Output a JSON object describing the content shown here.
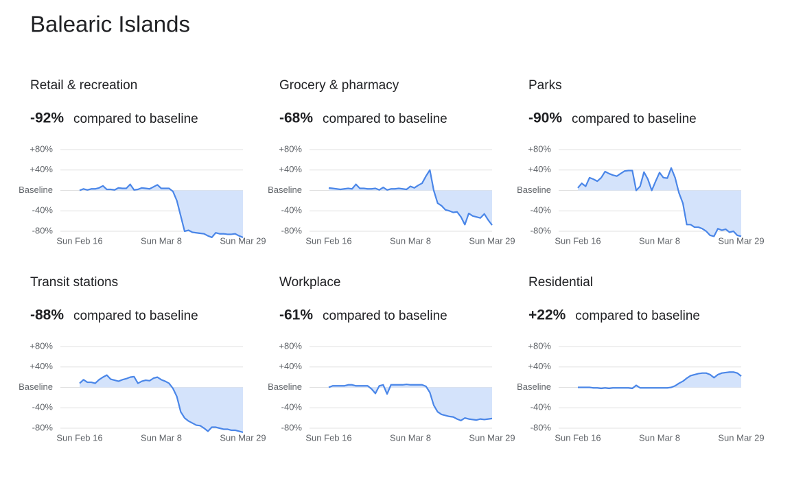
{
  "title": "Balearic Islands",
  "chart_data": [
    {
      "type": "line",
      "title": "Retail & recreation",
      "headline": "-92%",
      "headline_text": "compared to baseline",
      "categories": [
        "Sun Feb 16",
        null,
        null,
        null,
        null,
        null,
        null,
        null,
        null,
        null,
        null,
        null,
        null,
        null,
        null,
        null,
        null,
        null,
        null,
        null,
        null,
        "Sun Mar 8",
        null,
        null,
        null,
        null,
        null,
        null,
        null,
        null,
        null,
        null,
        null,
        null,
        null,
        null,
        null,
        null,
        null,
        null,
        null,
        null,
        "Sun Mar 29"
      ],
      "values": [
        0,
        3,
        1,
        3,
        3,
        5,
        9,
        2,
        2,
        1,
        5,
        4,
        4,
        12,
        1,
        2,
        5,
        4,
        3,
        7,
        11,
        4,
        4,
        4,
        -2,
        -20,
        -50,
        -80,
        -78,
        -82,
        -83,
        -84,
        -85,
        -89,
        -92,
        -83,
        -85,
        -85,
        -86,
        -86,
        -85,
        -89,
        -92
      ],
      "ylim": [
        -80,
        80
      ],
      "yticks": [
        {
          "value": 80,
          "label": "+80%"
        },
        {
          "value": 40,
          "label": "+40%"
        },
        {
          "value": 0,
          "label": "Baseline"
        },
        {
          "value": -40,
          "label": "-40%"
        },
        {
          "value": -80,
          "label": "-80%"
        }
      ],
      "color": "#4a86e8",
      "fill_color": "#d4e3fb",
      "grid": true
    },
    {
      "type": "line",
      "title": "Grocery & pharmacy",
      "headline": "-68%",
      "headline_text": "compared to baseline",
      "categories": [
        "Sun Feb 16",
        null,
        null,
        null,
        null,
        null,
        null,
        null,
        null,
        null,
        null,
        null,
        null,
        null,
        null,
        null,
        null,
        null,
        null,
        null,
        null,
        "Sun Mar 8",
        null,
        null,
        null,
        null,
        null,
        null,
        null,
        null,
        null,
        null,
        null,
        null,
        null,
        null,
        null,
        null,
        null,
        null,
        null,
        null,
        "Sun Mar 29"
      ],
      "values": [
        5,
        4,
        3,
        2,
        3,
        4,
        3,
        12,
        4,
        4,
        3,
        3,
        4,
        1,
        6,
        1,
        3,
        3,
        4,
        3,
        2,
        8,
        5,
        10,
        14,
        28,
        40,
        0,
        -25,
        -30,
        -38,
        -40,
        -43,
        -42,
        -52,
        -67,
        -45,
        -50,
        -52,
        -54,
        -46,
        -58,
        -68
      ],
      "ylim": [
        -80,
        80
      ],
      "yticks": [
        {
          "value": 80,
          "label": "+80%"
        },
        {
          "value": 40,
          "label": "+40%"
        },
        {
          "value": 0,
          "label": "Baseline"
        },
        {
          "value": -40,
          "label": "-40%"
        },
        {
          "value": -80,
          "label": "-80%"
        }
      ],
      "color": "#4a86e8",
      "fill_color": "#d4e3fb",
      "grid": true
    },
    {
      "type": "line",
      "title": "Parks",
      "headline": "-90%",
      "headline_text": "compared to baseline",
      "categories": [
        "Sun Feb 16",
        null,
        null,
        null,
        null,
        null,
        null,
        null,
        null,
        null,
        null,
        null,
        null,
        null,
        null,
        null,
        null,
        null,
        null,
        null,
        null,
        "Sun Mar 8",
        null,
        null,
        null,
        null,
        null,
        null,
        null,
        null,
        null,
        null,
        null,
        null,
        null,
        null,
        null,
        null,
        null,
        null,
        null,
        null,
        "Sun Mar 29"
      ],
      "values": [
        5,
        14,
        8,
        25,
        22,
        18,
        25,
        37,
        33,
        30,
        28,
        33,
        38,
        39,
        39,
        0,
        8,
        36,
        22,
        0,
        18,
        35,
        25,
        24,
        44,
        25,
        -5,
        -25,
        -67,
        -67,
        -72,
        -72,
        -75,
        -80,
        -88,
        -90,
        -75,
        -78,
        -76,
        -82,
        -80,
        -88,
        -90
      ],
      "ylim": [
        -80,
        80
      ],
      "yticks": [
        {
          "value": 80,
          "label": "+80%"
        },
        {
          "value": 40,
          "label": "+40%"
        },
        {
          "value": 0,
          "label": "Baseline"
        },
        {
          "value": -40,
          "label": "-40%"
        },
        {
          "value": -80,
          "label": "-80%"
        }
      ],
      "color": "#4a86e8",
      "fill_color": "#d4e3fb",
      "grid": true
    },
    {
      "type": "line",
      "title": "Transit stations",
      "headline": "-88%",
      "headline_text": "compared to baseline",
      "categories": [
        "Sun Feb 16",
        null,
        null,
        null,
        null,
        null,
        null,
        null,
        null,
        null,
        null,
        null,
        null,
        null,
        null,
        null,
        null,
        null,
        null,
        null,
        null,
        "Sun Mar 8",
        null,
        null,
        null,
        null,
        null,
        null,
        null,
        null,
        null,
        null,
        null,
        null,
        null,
        null,
        null,
        null,
        null,
        null,
        null,
        null,
        "Sun Mar 29"
      ],
      "values": [
        8,
        15,
        10,
        10,
        8,
        15,
        20,
        24,
        16,
        14,
        12,
        15,
        17,
        20,
        21,
        8,
        12,
        14,
        13,
        18,
        20,
        15,
        12,
        8,
        -2,
        -18,
        -48,
        -60,
        -66,
        -70,
        -74,
        -75,
        -80,
        -86,
        -78,
        -78,
        -80,
        -82,
        -82,
        -84,
        -84,
        -86,
        -88
      ],
      "ylim": [
        -80,
        80
      ],
      "yticks": [
        {
          "value": 80,
          "label": "+80%"
        },
        {
          "value": 40,
          "label": "+40%"
        },
        {
          "value": 0,
          "label": "Baseline"
        },
        {
          "value": -40,
          "label": "-40%"
        },
        {
          "value": -80,
          "label": "-80%"
        }
      ],
      "color": "#4a86e8",
      "fill_color": "#d4e3fb",
      "grid": true
    },
    {
      "type": "line",
      "title": "Workplace",
      "headline": "-61%",
      "headline_text": "compared to baseline",
      "categories": [
        "Sun Feb 16",
        null,
        null,
        null,
        null,
        null,
        null,
        null,
        null,
        null,
        null,
        null,
        null,
        null,
        null,
        null,
        null,
        null,
        null,
        null,
        null,
        "Sun Mar 8",
        null,
        null,
        null,
        null,
        null,
        null,
        null,
        null,
        null,
        null,
        null,
        null,
        null,
        null,
        null,
        null,
        null,
        null,
        null,
        null,
        "Sun Mar 29"
      ],
      "values": [
        0,
        3,
        3,
        3,
        3,
        5,
        5,
        3,
        3,
        3,
        3,
        -3,
        -12,
        3,
        5,
        -13,
        5,
        5,
        5,
        5,
        6,
        5,
        5,
        5,
        5,
        2,
        -10,
        -35,
        -48,
        -53,
        -55,
        -57,
        -58,
        -62,
        -65,
        -60,
        -62,
        -63,
        -64,
        -62,
        -63,
        -62,
        -61
      ],
      "ylim": [
        -80,
        80
      ],
      "yticks": [
        {
          "value": 80,
          "label": "+80%"
        },
        {
          "value": 40,
          "label": "+40%"
        },
        {
          "value": 0,
          "label": "Baseline"
        },
        {
          "value": -40,
          "label": "-40%"
        },
        {
          "value": -80,
          "label": "-80%"
        }
      ],
      "color": "#4a86e8",
      "fill_color": "#d4e3fb",
      "grid": true
    },
    {
      "type": "line",
      "title": "Residential",
      "headline": "+22%",
      "headline_text": "compared to baseline",
      "categories": [
        "Sun Feb 16",
        null,
        null,
        null,
        null,
        null,
        null,
        null,
        null,
        null,
        null,
        null,
        null,
        null,
        null,
        null,
        null,
        null,
        null,
        null,
        null,
        "Sun Mar 8",
        null,
        null,
        null,
        null,
        null,
        null,
        null,
        null,
        null,
        null,
        null,
        null,
        null,
        null,
        null,
        null,
        null,
        null,
        null,
        null,
        "Sun Mar 29"
      ],
      "values": [
        0,
        0,
        0,
        0,
        -1,
        -1,
        -2,
        -1,
        -2,
        -1,
        -1,
        -1,
        -1,
        -1,
        -2,
        4,
        -1,
        -1,
        -1,
        -1,
        -1,
        -1,
        -1,
        -1,
        0,
        3,
        8,
        12,
        18,
        23,
        25,
        27,
        28,
        28,
        25,
        19,
        25,
        28,
        29,
        30,
        30,
        28,
        22
      ],
      "ylim": [
        -80,
        80
      ],
      "yticks": [
        {
          "value": 80,
          "label": "+80%"
        },
        {
          "value": 40,
          "label": "+40%"
        },
        {
          "value": 0,
          "label": "Baseline"
        },
        {
          "value": -40,
          "label": "-40%"
        },
        {
          "value": -80,
          "label": "-80%"
        }
      ],
      "color": "#4a86e8",
      "fill_color": "#d4e3fb",
      "grid": true
    }
  ]
}
